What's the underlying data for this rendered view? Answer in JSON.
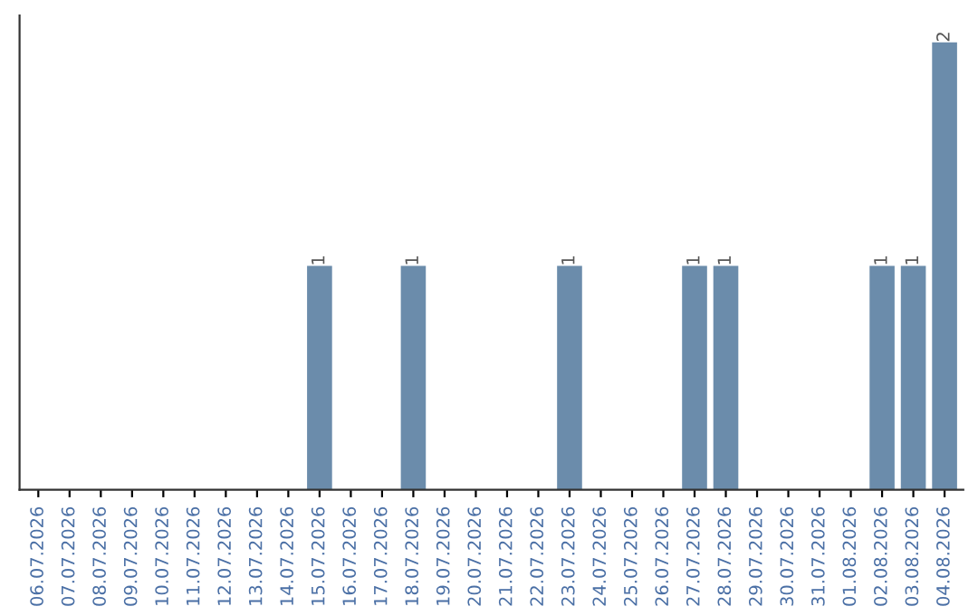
{
  "chart_data": {
    "type": "bar",
    "categories": [
      "06.07.2026",
      "07.07.2026",
      "08.07.2026",
      "09.07.2026",
      "10.07.2026",
      "11.07.2026",
      "12.07.2026",
      "13.07.2026",
      "14.07.2026",
      "15.07.2026",
      "16.07.2026",
      "17.07.2026",
      "18.07.2026",
      "19.07.2026",
      "20.07.2026",
      "21.07.2026",
      "22.07.2026",
      "23.07.2026",
      "24.07.2026",
      "25.07.2026",
      "26.07.2026",
      "27.07.2026",
      "28.07.2026",
      "29.07.2026",
      "30.07.2026",
      "31.07.2026",
      "01.08.2026",
      "02.08.2026",
      "03.08.2026",
      "04.08.2026"
    ],
    "values": [
      0,
      0,
      0,
      0,
      0,
      0,
      0,
      0,
      0,
      1,
      0,
      0,
      1,
      0,
      0,
      0,
      0,
      1,
      0,
      0,
      0,
      1,
      1,
      0,
      0,
      0,
      0,
      1,
      1,
      2
    ],
    "value_labels": [
      null,
      null,
      null,
      null,
      null,
      null,
      null,
      null,
      null,
      "1",
      null,
      null,
      "1",
      null,
      null,
      null,
      null,
      "1",
      null,
      null,
      null,
      "1",
      "1",
      null,
      null,
      null,
      null,
      "1",
      "1",
      "2"
    ],
    "color": "#6b8cab",
    "tick_labels": "x",
    "grid": false,
    "legend": false
  }
}
